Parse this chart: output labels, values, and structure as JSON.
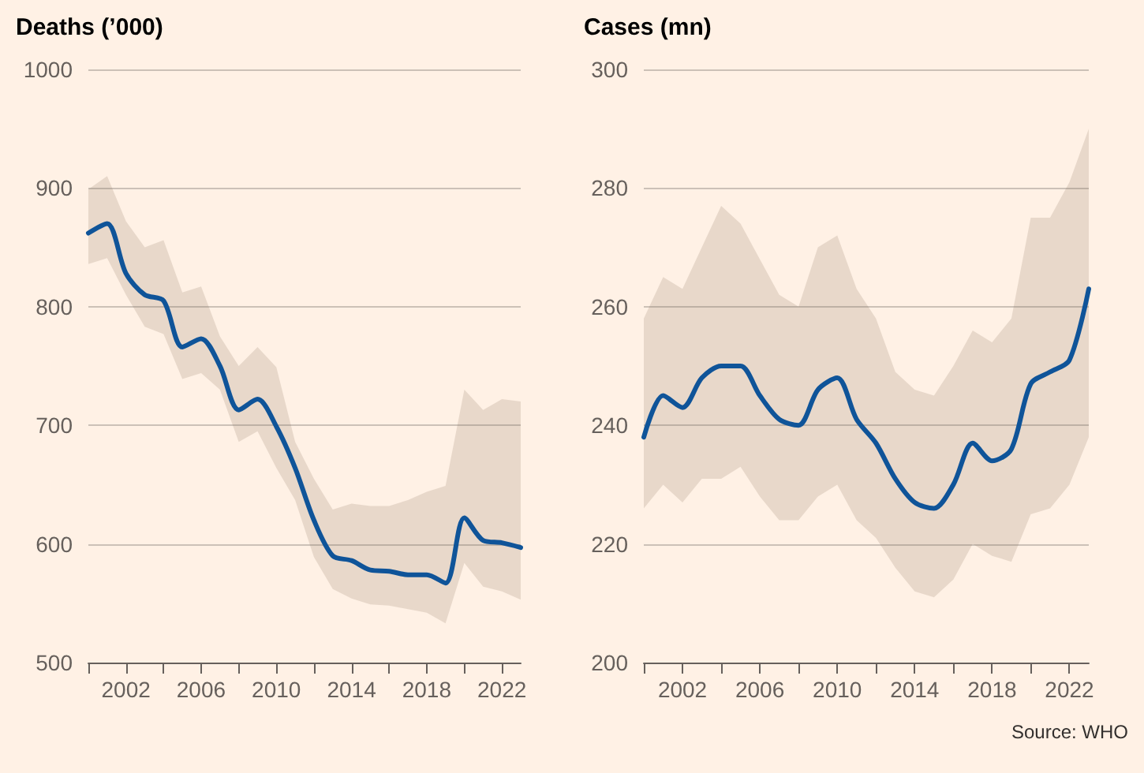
{
  "chart_data": [
    {
      "type": "line",
      "title": "Deaths (’000)",
      "x": [
        2000,
        2001,
        2002,
        2003,
        2004,
        2005,
        2006,
        2007,
        2008,
        2009,
        2010,
        2011,
        2012,
        2013,
        2014,
        2015,
        2016,
        2017,
        2018,
        2019,
        2020,
        2021,
        2022,
        2023
      ],
      "series": [
        {
          "color": "#0f5499",
          "values": [
            862,
            870,
            828,
            810,
            805,
            766,
            773,
            750,
            713,
            722,
            699,
            664,
            620,
            590,
            586,
            578,
            577,
            574,
            574,
            567,
            622,
            603,
            601,
            597
          ],
          "upper": [
            899,
            910,
            872,
            850,
            856,
            812,
            817,
            775,
            750,
            766,
            749,
            686,
            655,
            629,
            634,
            632,
            632,
            637,
            644,
            649,
            730,
            713,
            722,
            720
          ],
          "lower": [
            836,
            841,
            810,
            783,
            777,
            739,
            744,
            730,
            686,
            695,
            664,
            637,
            589,
            562,
            554,
            549,
            548,
            545,
            542,
            533,
            584,
            564,
            560,
            553
          ]
        }
      ],
      "xlim": [
        2000,
        2023
      ],
      "xticks": [
        {
          "value": 2000,
          "label": null
        },
        2002,
        {
          "value": 2004,
          "label": null
        },
        2006,
        {
          "value": 2008,
          "label": null
        },
        2010,
        {
          "value": 2012,
          "label": null
        },
        2014,
        {
          "value": 2016,
          "label": null
        },
        2018,
        {
          "value": 2020,
          "label": null
        },
        2022
      ],
      "ylim": [
        500,
        1000
      ],
      "yticks": [
        500,
        600,
        700,
        800,
        900,
        1000
      ],
      "grid": "y"
    },
    {
      "type": "line",
      "title": "Cases (mn)",
      "x": [
        2000,
        2001,
        2002,
        2003,
        2004,
        2005,
        2006,
        2007,
        2008,
        2009,
        2010,
        2011,
        2012,
        2013,
        2014,
        2015,
        2016,
        2017,
        2018,
        2019,
        2020,
        2021,
        2022,
        2023
      ],
      "series": [
        {
          "color": "#0f5499",
          "values": [
            238,
            245,
            243,
            248,
            250,
            250,
            245,
            241,
            240,
            246,
            248,
            241,
            237,
            231,
            227,
            226,
            230,
            237,
            234,
            236,
            247,
            249,
            251,
            263
          ],
          "upper": [
            258,
            265,
            263,
            270,
            277,
            274,
            268,
            262,
            260,
            270,
            272,
            263,
            258,
            249,
            246,
            245,
            250,
            256,
            254,
            258,
            275,
            275,
            281,
            290
          ],
          "lower": [
            226,
            230,
            227,
            231,
            231,
            233,
            228,
            224,
            224,
            228,
            230,
            224,
            221,
            216,
            212,
            211,
            214,
            220,
            218,
            217,
            225,
            226,
            230,
            238
          ]
        }
      ],
      "xlim": [
        2000,
        2023
      ],
      "xticks": [
        {
          "value": 2000,
          "label": null
        },
        2002,
        {
          "value": 2004,
          "label": null
        },
        2006,
        {
          "value": 2008,
          "label": null
        },
        2010,
        {
          "value": 2012,
          "label": null
        },
        2014,
        {
          "value": 2016,
          "label": null
        },
        2018,
        {
          "value": 2020,
          "label": null
        },
        2022
      ],
      "ylim": [
        200,
        300
      ],
      "yticks": [
        200,
        220,
        240,
        260,
        280,
        300
      ],
      "grid": "y",
      "annotations": [
        "Source: WHO"
      ]
    }
  ]
}
